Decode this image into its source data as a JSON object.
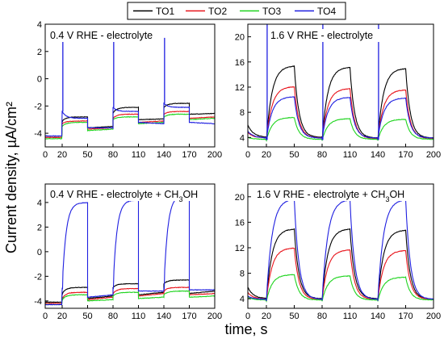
{
  "chart_data": {
    "type": "line",
    "xlabel": "time, s",
    "ylabel": "Current density, µA/cm²",
    "legend": {
      "placement": "top-center",
      "entries": [
        {
          "name": "TO1",
          "color": "#000000"
        },
        {
          "name": "TO2",
          "color": "#e8141b"
        },
        {
          "name": "TO3",
          "color": "#1fd41f"
        },
        {
          "name": "TO4",
          "color": "#1f1fe0"
        }
      ]
    },
    "light_on": [
      20,
      80,
      140
    ],
    "light_off": [
      50,
      110,
      170
    ],
    "panels": [
      {
        "id": "a",
        "title_main": "0.4 V RHE - electrolyte",
        "title_sub": "",
        "title_tail": "",
        "xlim": [
          0,
          200
        ],
        "ylim": [
          -5,
          4
        ],
        "xticks": [
          0,
          20,
          50,
          80,
          110,
          140,
          170,
          200
        ],
        "yticks": [
          -4,
          -2,
          0,
          2,
          4
        ],
        "series": [
          {
            "name": "TO1",
            "start": -4.3,
            "pulses": [
              {
                "from": -3.1,
                "to": -2.8
              },
              {
                "from": -2.5,
                "to": -2.1
              },
              {
                "from": -2.1,
                "to": -1.8
              }
            ],
            "dark": [
              {
                "from": -3.6,
                "to": -3.5
              },
              {
                "from": -3.0,
                "to": -2.95
              },
              {
                "from": -2.6,
                "to": -2.55
              }
            ],
            "spike": null
          },
          {
            "name": "TO2",
            "start": -4.3,
            "pulses": [
              {
                "from": -3.3,
                "to": -3.1
              },
              {
                "from": -2.9,
                "to": -2.6
              },
              {
                "from": -2.6,
                "to": -2.4
              }
            ],
            "dark": [
              {
                "from": -3.7,
                "to": -3.6
              },
              {
                "from": -3.2,
                "to": -3.1
              },
              {
                "from": -2.9,
                "to": -2.8
              }
            ],
            "spike": null
          },
          {
            "name": "TO3",
            "start": -4.4,
            "pulses": [
              {
                "from": -3.5,
                "to": -3.2
              },
              {
                "from": -3.0,
                "to": -2.8
              },
              {
                "from": -2.8,
                "to": -2.6
              }
            ],
            "dark": [
              {
                "from": -3.8,
                "to": -3.7
              },
              {
                "from": -3.3,
                "to": -3.2
              },
              {
                "from": -3.0,
                "to": -2.9
              }
            ],
            "spike": null
          },
          {
            "name": "TO4",
            "start": -4.2,
            "pulses": [
              {
                "from": -2.4,
                "to": -2.9
              },
              {
                "from": -2.1,
                "to": -2.4
              },
              {
                "from": -1.8,
                "to": -2.1
              }
            ],
            "dark": [
              {
                "from": -3.6,
                "to": -3.6
              },
              {
                "from": -3.2,
                "to": -3.3
              },
              {
                "from": -3.2,
                "to": -3.3
              }
            ],
            "spike": 3.0
          }
        ]
      },
      {
        "id": "b",
        "title_main": "1.6 V RHE - electrolyte",
        "title_sub": "",
        "title_tail": "",
        "xlim": [
          0,
          200
        ],
        "ylim": [
          2.5,
          22
        ],
        "xticks": [
          0,
          20,
          50,
          80,
          110,
          140,
          170,
          200
        ],
        "yticks": [
          4,
          8,
          12,
          16,
          20
        ],
        "series": [
          {
            "name": "TO1",
            "start": 6.0,
            "pulses": [
              {
                "from": 3.6,
                "to": 15.4
              },
              {
                "from": 3.6,
                "to": 15.2
              },
              {
                "from": 3.6,
                "to": 15.0
              }
            ],
            "dark": [
              {
                "from": 4.4,
                "to": 4.0
              },
              {
                "from": 4.2,
                "to": 3.9
              },
              {
                "from": 4.1,
                "to": 3.9
              }
            ],
            "spike": null
          },
          {
            "name": "TO2",
            "start": 4.8,
            "pulses": [
              {
                "from": 3.6,
                "to": 12.1
              },
              {
                "from": 3.6,
                "to": 11.8
              },
              {
                "from": 3.6,
                "to": 11.6
              }
            ],
            "dark": [
              {
                "from": 4.1,
                "to": 3.9
              },
              {
                "from": 4.0,
                "to": 3.8
              },
              {
                "from": 4.0,
                "to": 3.8
              }
            ],
            "spike": null
          },
          {
            "name": "TO3",
            "start": 4.0,
            "pulses": [
              {
                "from": 3.5,
                "to": 7.2
              },
              {
                "from": 3.5,
                "to": 7.0
              },
              {
                "from": 3.5,
                "to": 6.9
              }
            ],
            "dark": [
              {
                "from": 3.8,
                "to": 3.7
              },
              {
                "from": 3.8,
                "to": 3.7
              },
              {
                "from": 3.8,
                "to": 3.7
              }
            ],
            "spike": null
          },
          {
            "name": "TO4",
            "start": 5.0,
            "pulses": [
              {
                "from": 3.6,
                "to": 10.5
              },
              {
                "from": 3.6,
                "to": 10.4
              },
              {
                "from": 3.6,
                "to": 10.3
              }
            ],
            "dark": [
              {
                "from": 4.1,
                "to": 3.9
              },
              {
                "from": 4.0,
                "to": 3.9
              },
              {
                "from": 4.0,
                "to": 3.9
              }
            ],
            "spike": 22.0
          }
        ]
      },
      {
        "id": "c",
        "title_main": "0.4 V RHE - electrolyte + CH",
        "title_sub": "3",
        "title_tail": "OH",
        "xlim": [
          0,
          200
        ],
        "ylim": [
          -4.6,
          5.5
        ],
        "xticks": [
          0,
          20,
          50,
          80,
          110,
          140,
          170,
          200
        ],
        "yticks": [
          -4,
          -2,
          0,
          2,
          4
        ],
        "series": [
          {
            "name": "TO1",
            "start": -4.1,
            "pulses": [
              {
                "from": -3.4,
                "to": -2.9
              },
              {
                "from": -2.9,
                "to": -2.6
              },
              {
                "from": -2.6,
                "to": -2.3
              }
            ],
            "dark": [
              {
                "from": -3.8,
                "to": -3.6
              },
              {
                "from": -3.5,
                "to": -3.3
              },
              {
                "from": -3.4,
                "to": -3.2
              }
            ],
            "spike": null
          },
          {
            "name": "TO2",
            "start": -4.2,
            "pulses": [
              {
                "from": -3.8,
                "to": -3.3
              },
              {
                "from": -3.4,
                "to": -3.0
              },
              {
                "from": -3.2,
                "to": -2.9
              }
            ],
            "dark": [
              {
                "from": -3.9,
                "to": -3.7
              },
              {
                "from": -3.6,
                "to": -3.4
              },
              {
                "from": -3.5,
                "to": -3.4
              }
            ],
            "spike": null
          },
          {
            "name": "TO3",
            "start": -4.3,
            "pulses": [
              {
                "from": -3.9,
                "to": -3.5
              },
              {
                "from": -3.6,
                "to": -3.3
              },
              {
                "from": -3.5,
                "to": -3.2
              }
            ],
            "dark": [
              {
                "from": -4.0,
                "to": -3.9
              },
              {
                "from": -3.8,
                "to": -3.7
              },
              {
                "from": -3.7,
                "to": -3.6
              }
            ],
            "spike": null
          },
          {
            "name": "TO4",
            "start": -4.3,
            "pulses": [
              {
                "from": -3.0,
                "to": 4.0
              },
              {
                "from": -3.0,
                "to": 4.2
              },
              {
                "from": -3.0,
                "to": 4.6
              }
            ],
            "dark": [
              {
                "from": -3.7,
                "to": -3.5
              },
              {
                "from": -3.2,
                "to": -3.2
              },
              {
                "from": -3.1,
                "to": -3.1
              }
            ],
            "spike": null
          }
        ]
      },
      {
        "id": "d",
        "title_main": "1.6 V RHE - electrolyte + CH",
        "title_sub": "3",
        "title_tail": "OH",
        "xlim": [
          0,
          200
        ],
        "ylim": [
          2.5,
          22
        ],
        "xticks": [
          0,
          20,
          50,
          80,
          110,
          140,
          170,
          200
        ],
        "yticks": [
          4,
          8,
          12,
          16,
          20
        ],
        "series": [
          {
            "name": "TO1",
            "start": 5.8,
            "pulses": [
              {
                "from": 3.7,
                "to": 15.0
              },
              {
                "from": 3.7,
                "to": 15.0
              },
              {
                "from": 3.7,
                "to": 14.8
              }
            ],
            "dark": [
              {
                "from": 4.4,
                "to": 4.0
              },
              {
                "from": 4.3,
                "to": 4.0
              },
              {
                "from": 4.2,
                "to": 3.9
              }
            ],
            "spike": null
          },
          {
            "name": "TO2",
            "start": 5.0,
            "pulses": [
              {
                "from": 3.7,
                "to": 12.0
              },
              {
                "from": 3.7,
                "to": 11.7
              },
              {
                "from": 3.7,
                "to": 11.6
              }
            ],
            "dark": [
              {
                "from": 4.2,
                "to": 3.9
              },
              {
                "from": 4.1,
                "to": 3.9
              },
              {
                "from": 4.1,
                "to": 3.9
              }
            ],
            "spike": null
          },
          {
            "name": "TO3",
            "start": 4.2,
            "pulses": [
              {
                "from": 3.6,
                "to": 7.8
              },
              {
                "from": 3.6,
                "to": 7.6
              },
              {
                "from": 3.6,
                "to": 7.4
              }
            ],
            "dark": [
              {
                "from": 3.9,
                "to": 3.8
              },
              {
                "from": 3.9,
                "to": 3.8
              },
              {
                "from": 3.9,
                "to": 3.8
              }
            ],
            "spike": null
          },
          {
            "name": "TO4",
            "start": 4.4,
            "pulses": [
              {
                "from": 3.7,
                "to": 19.7
              },
              {
                "from": 3.7,
                "to": 19.6
              },
              {
                "from": 3.7,
                "to": 19.6
              }
            ],
            "dark": [
              {
                "from": 4.2,
                "to": 3.9
              },
              {
                "from": 4.1,
                "to": 3.9
              },
              {
                "from": 4.1,
                "to": 3.9
              }
            ],
            "spike": null
          }
        ]
      }
    ]
  }
}
